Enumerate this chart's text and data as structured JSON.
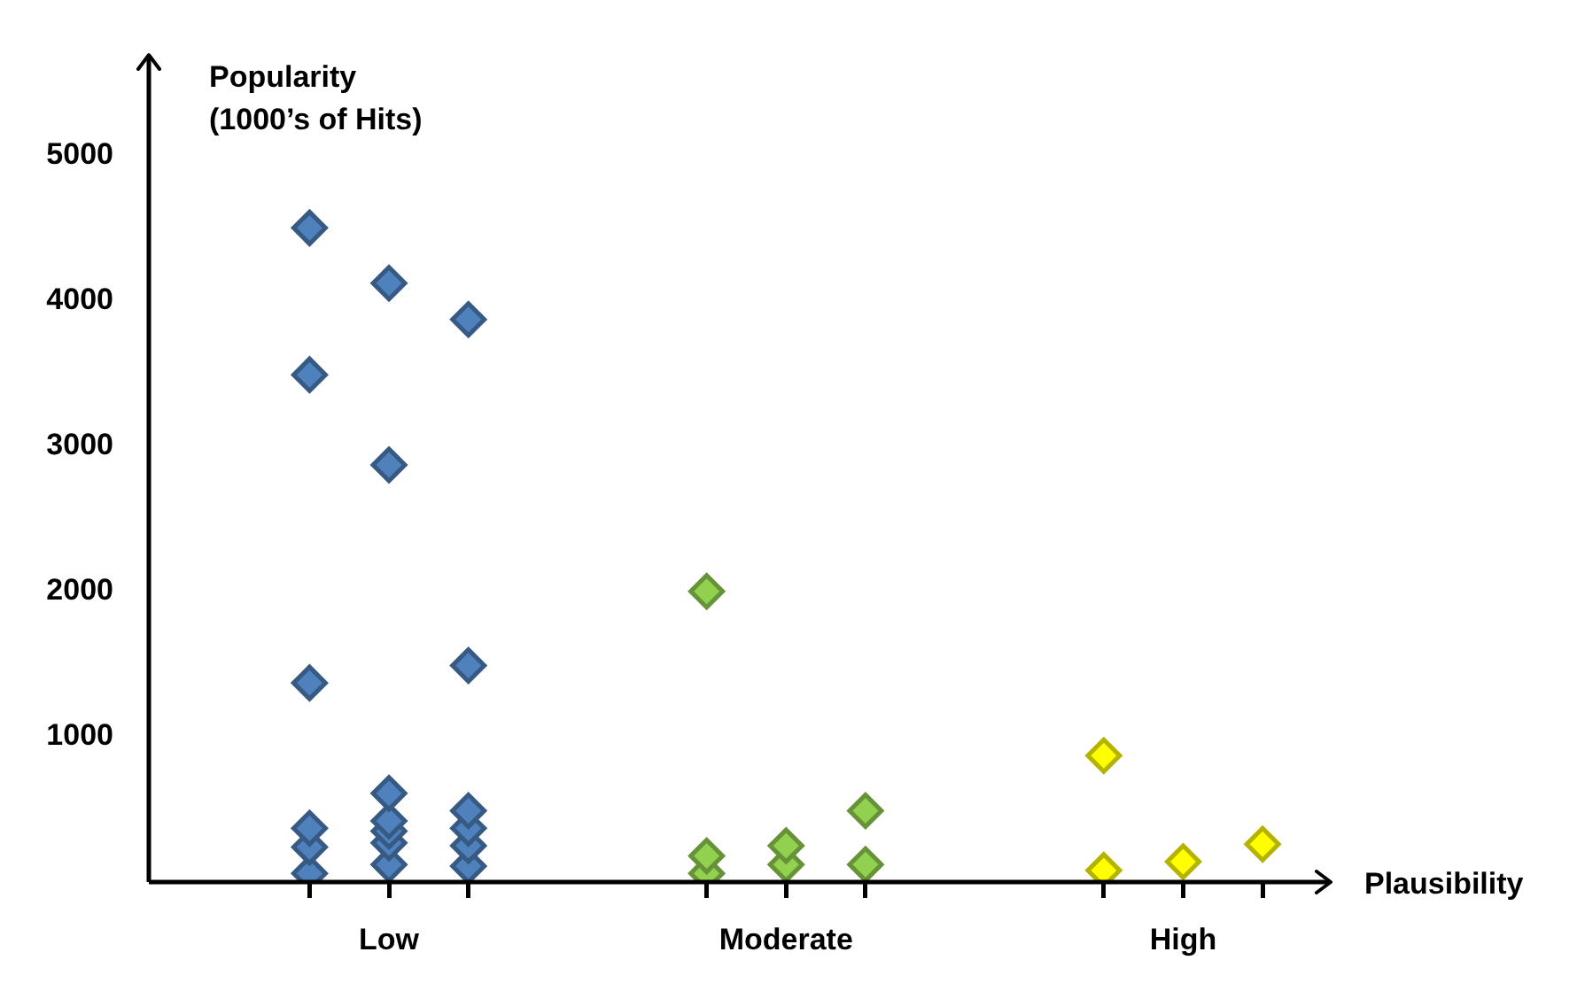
{
  "chart_data": {
    "type": "scatter",
    "xlabel": "Plausibility",
    "ylabel": "Popularity\n(1000’s of Hits)",
    "categories": [
      null,
      "Low",
      null,
      null,
      null,
      null,
      "Moderate",
      null,
      null,
      null,
      null,
      "High",
      null
    ],
    "series": [
      {
        "color": "#4f81bd",
        "values": [
          4500,
          4120,
          3870,
          null,
          null,
          null,
          null,
          null,
          null,
          null,
          null,
          null,
          null
        ]
      },
      {
        "color": "#4f81bd",
        "values": [
          3490,
          2870,
          1490,
          null,
          null,
          null,
          null,
          null,
          null,
          null,
          null,
          null,
          null
        ]
      },
      {
        "color": "#4f81bd",
        "values": [
          1370,
          610,
          490,
          null,
          null,
          null,
          null,
          null,
          null,
          null,
          null,
          null,
          null
        ]
      },
      {
        "color": "#4f81bd",
        "values": [
          370,
          420,
          370,
          null,
          null,
          null,
          null,
          null,
          null,
          null,
          null,
          null,
          null
        ]
      },
      {
        "color": "#4f81bd",
        "values": [
          240,
          350,
          250,
          null,
          null,
          null,
          null,
          null,
          null,
          null,
          null,
          null,
          null
        ]
      },
      {
        "color": "#4f81bd",
        "values": [
          60,
          270,
          110,
          null,
          null,
          null,
          null,
          null,
          null,
          null,
          null,
          null,
          null
        ]
      },
      {
        "color": "#4f81bd",
        "values": [
          null,
          120,
          null,
          null,
          null,
          null,
          null,
          null,
          null,
          null,
          null,
          null,
          null
        ]
      },
      {
        "color": "#92d050",
        "values": [
          null,
          null,
          null,
          null,
          null,
          2000,
          250,
          490,
          null,
          null,
          null,
          null,
          null
        ]
      },
      {
        "color": "#92d050",
        "values": [
          null,
          null,
          null,
          null,
          null,
          180,
          120,
          120,
          null,
          null,
          null,
          null,
          null
        ]
      },
      {
        "color": "#92d050",
        "values": [
          null,
          null,
          null,
          null,
          null,
          60,
          null,
          null,
          null,
          null,
          null,
          null,
          null
        ]
      },
      {
        "color": "#ffff00",
        "values": [
          null,
          null,
          null,
          null,
          null,
          null,
          null,
          null,
          null,
          null,
          870,
          140,
          260
        ]
      },
      {
        "color": "#ffff00",
        "values": [
          null,
          null,
          null,
          null,
          null,
          null,
          null,
          null,
          null,
          null,
          80,
          null,
          null
        ]
      }
    ],
    "ylim": [
      0,
      5700
    ],
    "yticks": [
      1000,
      2000,
      3000,
      4000,
      5000
    ],
    "grid": false,
    "legend": false,
    "marker": "diamond"
  }
}
